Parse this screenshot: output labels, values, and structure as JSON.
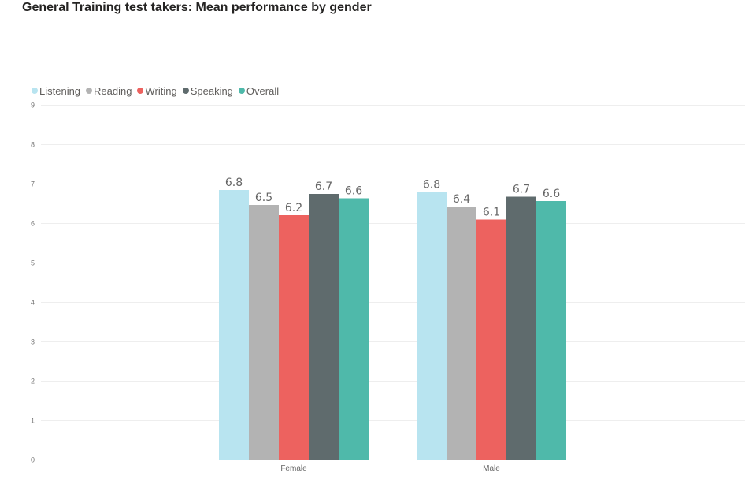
{
  "chart_data": {
    "type": "bar",
    "title": "General Training test takers: Mean performance by gender",
    "categories": [
      "Female",
      "Male"
    ],
    "series": [
      {
        "name": "Listening",
        "color": "#b8e4f0",
        "values": [
          6.84,
          6.79
        ],
        "labels": [
          "6.8",
          "6.8"
        ]
      },
      {
        "name": "Reading",
        "color": "#b3b3b3",
        "values": [
          6.46,
          6.42
        ],
        "labels": [
          "6.5",
          "6.4"
        ]
      },
      {
        "name": "Writing",
        "color": "#ed625f",
        "values": [
          6.2,
          6.09
        ],
        "labels": [
          "6.2",
          "6.1"
        ]
      },
      {
        "name": "Speaking",
        "color": "#5f6b6d",
        "values": [
          6.74,
          6.67
        ],
        "labels": [
          "6.7",
          "6.7"
        ]
      },
      {
        "name": "Overall",
        "color": "#4fb9aa",
        "values": [
          6.63,
          6.56
        ],
        "labels": [
          "6.6",
          "6.6"
        ]
      }
    ],
    "xlabel": "",
    "ylabel": "",
    "ylim": [
      0,
      9
    ],
    "yticks": [
      "0",
      "1",
      "2",
      "3",
      "4",
      "5",
      "6",
      "7",
      "8",
      "9"
    ],
    "grid": true,
    "legend": "top-left"
  }
}
